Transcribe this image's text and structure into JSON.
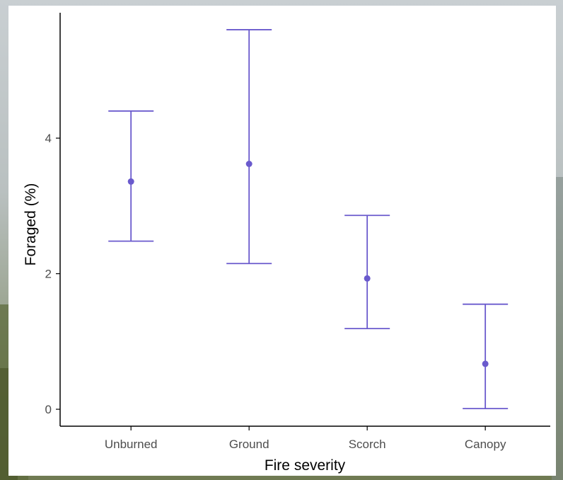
{
  "colors": {
    "series": "#6a5acd",
    "axis": "#000000",
    "tick_text": "#4d4d4d",
    "panel": "#ffffff"
  },
  "chart_data": {
    "type": "errorbar",
    "title": "",
    "xlabel": "Fire severity",
    "ylabel": "Foraged (%)",
    "categories": [
      "Unburned",
      "Ground",
      "Scorch",
      "Canopy"
    ],
    "values": [
      3.36,
      3.62,
      1.93,
      0.67
    ],
    "lower": [
      2.48,
      2.15,
      1.19,
      0.01
    ],
    "upper": [
      4.4,
      5.6,
      2.86,
      1.55
    ],
    "ylim": [
      -0.25,
      5.85
    ],
    "yticks": [
      0,
      2,
      4
    ],
    "grid": false,
    "legend": "none"
  }
}
